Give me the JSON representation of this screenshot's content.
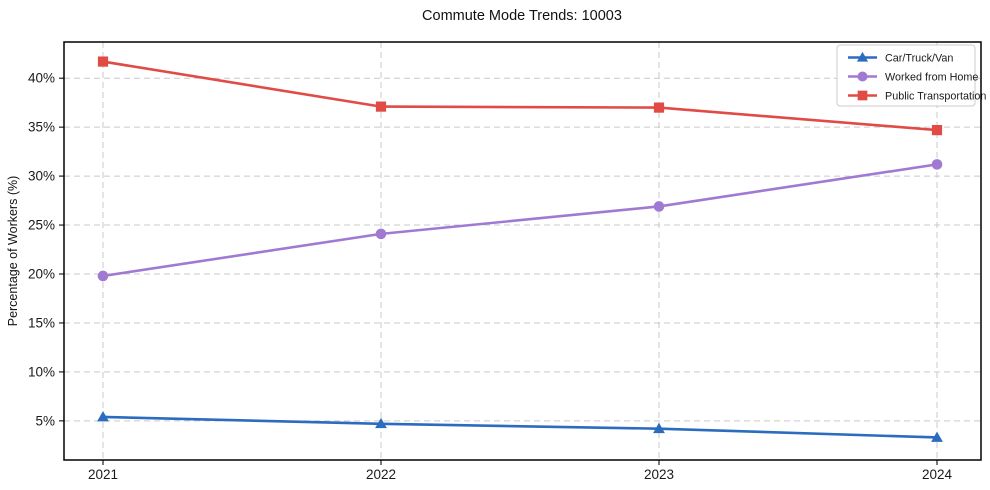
{
  "title": "Commute Mode Trends: 10003",
  "chart_data": {
    "type": "line",
    "title": "Commute Mode Trends: 10003",
    "xlabel": "",
    "ylabel": "Percentage of Workers (%)",
    "categories": [
      "2021",
      "2022",
      "2023",
      "2024"
    ],
    "series": [
      {
        "name": "Car/Truck/Van",
        "color": "#2b6cbf",
        "marker": "triangle",
        "values": [
          5.4,
          4.7,
          4.2,
          3.3
        ]
      },
      {
        "name": "Worked from Home",
        "color": "#a07ad2",
        "marker": "circle",
        "values": [
          19.8,
          24.1,
          26.9,
          31.2
        ]
      },
      {
        "name": "Public Transportation",
        "color": "#e14b45",
        "marker": "square",
        "values": [
          41.7,
          37.1,
          37.0,
          34.7
        ]
      }
    ],
    "yticks": [
      5,
      10,
      15,
      20,
      25,
      30,
      35,
      40
    ],
    "ytick_labels": [
      "5%",
      "10%",
      "15%",
      "20%",
      "25%",
      "30%",
      "35%",
      "40%"
    ],
    "ylim": [
      1.0,
      43.7
    ],
    "grid": true,
    "grid_style": "dashed",
    "legend_position": "upper right",
    "colors": {
      "grid": "#c9c9c9",
      "frame": "#000000",
      "text": "#1a1a1a",
      "tick": "#222222",
      "legend_border": "#cccccc",
      "background": "#ffffff"
    }
  }
}
